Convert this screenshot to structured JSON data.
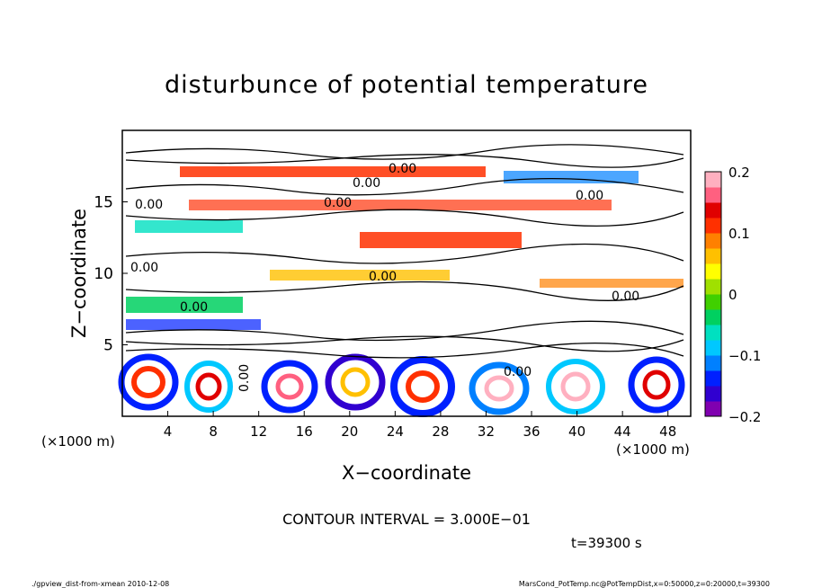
{
  "chart_data": {
    "type": "heatmap",
    "title": "disturbunce of potential temperature",
    "xlabel": "X−coordinate",
    "ylabel": "Z−coordinate",
    "x_unit_left": "(×1000 m)",
    "x_unit_right": "(×1000 m)",
    "xlim": [
      0,
      50
    ],
    "ylim": [
      0,
      20
    ],
    "x_ticks": [
      "4",
      "8",
      "12",
      "16",
      "20",
      "24",
      "28",
      "32",
      "36",
      "40",
      "44",
      "48"
    ],
    "x_tick_values": [
      4,
      8,
      12,
      16,
      20,
      24,
      28,
      32,
      36,
      40,
      44,
      48
    ],
    "y_ticks": [
      "5",
      "10",
      "15"
    ],
    "y_tick_values": [
      5,
      10,
      15
    ],
    "colorbar": {
      "range": [
        -0.2,
        0.2
      ],
      "labels": [
        "0.2",
        "0.1",
        "0",
        "−0.1",
        "−0.2"
      ],
      "label_values": [
        0.2,
        0.1,
        0,
        -0.1,
        -0.2
      ],
      "colors": [
        "#8000b0",
        "#3000d0",
        "#0020ff",
        "#0080ff",
        "#00c8ff",
        "#00e0c0",
        "#00d060",
        "#40d000",
        "#a0e000",
        "#ffff00",
        "#ffc000",
        "#ff8000",
        "#ff3000",
        "#e00000",
        "#ff6080",
        "#ffb0c0"
      ]
    },
    "contour_labels": [
      "0.00",
      "0.00",
      "0.00",
      "0.00",
      "0.00",
      "0.00",
      "0.00",
      "0.00",
      "0.00",
      "0.00",
      "0.00"
    ],
    "contour_interval": "CONTOUR INTERVAL = 3.000E−01",
    "time": "t=39300 s",
    "footer_left": "./gpview_dist-from-xmean  2010-12-08",
    "footer_right": "MarsCond_PotTemp.nc@PotTempDist,x=0:50000,z=0:20000,t=39300"
  }
}
